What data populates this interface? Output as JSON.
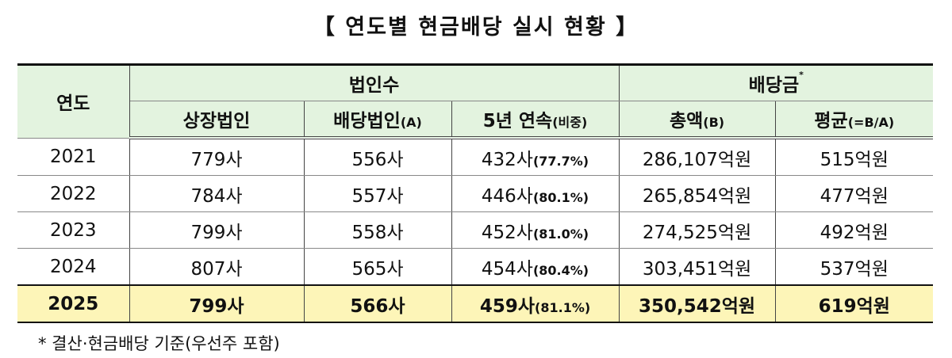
{
  "title": "【 연도별 현금배당 실시 현황 】",
  "headers": {
    "year": "연도",
    "corp_group": "법인수",
    "dividend_group": "배당금",
    "dividend_mark": "*",
    "listed": "상장법인",
    "div_corp": "배당법인",
    "div_corp_sub": "(A)",
    "five_year": "5년 연속",
    "five_year_sub": "(비중)",
    "total": "총액",
    "total_sub": "(B)",
    "avg": "평균",
    "avg_sub": "(=B/A)"
  },
  "rows": [
    {
      "year": "2021",
      "listed": "779사",
      "div_corp": "556사",
      "five_year": "432사",
      "ratio": "(77.7%)",
      "total": "286,107억원",
      "avg": "515억원"
    },
    {
      "year": "2022",
      "listed": "784사",
      "div_corp": "557사",
      "five_year": "446사",
      "ratio": "(80.1%)",
      "total": "265,854억원",
      "avg": "477억원"
    },
    {
      "year": "2023",
      "listed": "799사",
      "div_corp": "558사",
      "five_year": "452사",
      "ratio": "(81.0%)",
      "total": "274,525억원",
      "avg": "492억원"
    },
    {
      "year": "2024",
      "listed": "807사",
      "div_corp": "565사",
      "five_year": "454사",
      "ratio": "(80.4%)",
      "total": "303,451억원",
      "avg": "537억원"
    },
    {
      "year": "2025",
      "listed": "799사",
      "div_corp": "566사",
      "five_year": "459사",
      "ratio": "(81.1%)",
      "total": "350,542억원",
      "avg": "619억원"
    }
  ],
  "note": "* 결산·현금배당 기준(우선주 포함)",
  "colors": {
    "header_bg": "#e3f3df",
    "highlight_bg": "#fdf5b8"
  }
}
